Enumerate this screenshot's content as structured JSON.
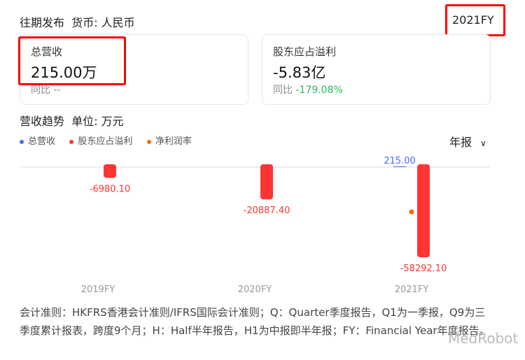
{
  "header": {
    "title": "往期发布",
    "currency": "货币: 人民币",
    "period": "2021FY"
  },
  "cards": [
    {
      "label": "总营收",
      "value": "215.00万",
      "yoy_label": "同比",
      "yoy": "--",
      "yoy_color": "#888888"
    },
    {
      "label": "股东应占溢利",
      "value": "-5.83亿",
      "yoy_label": "同比",
      "yoy": "-179.08%",
      "yoy_color": "#2db55d"
    }
  ],
  "trend": {
    "title": "营收趋势",
    "unit": "单位: 万元",
    "period_select": "年报"
  },
  "legend": [
    {
      "name": "总营收",
      "color": "#4a6cf7"
    },
    {
      "name": "股东应占溢利",
      "color": "#ff3434"
    },
    {
      "name": "净利润率",
      "color": "#ff6a00"
    }
  ],
  "chart_data": {
    "type": "bar",
    "categories": [
      "2019FY",
      "2020FY",
      "2021FY"
    ],
    "series": [
      {
        "name": "总营收",
        "values": [
          null,
          null,
          215.0
        ],
        "labels": [
          "",
          "",
          "215.00"
        ],
        "color": "#4a6cf7"
      },
      {
        "name": "股东应占溢利",
        "values": [
          -6980.1,
          -20887.4,
          -58292.1
        ],
        "labels": [
          "-6980.10",
          "-20887.40",
          "-58292.10"
        ],
        "color": "#ff3434"
      },
      {
        "name": "净利润率",
        "type": "scatter",
        "values": [
          null,
          null,
          -27112.6
        ],
        "color": "#ff6a00"
      }
    ]
  },
  "footnote": "会计准则：HKFRS香港会计准则/IFRS国际会计准则；Q：Quarter季度报告，Q1为一季报，Q9为三季度累计报表，跨度9个月；H：Half半年报告，H1为中报即半年报；FY：Financial Year年度报告。",
  "watermark": "MedRobot"
}
